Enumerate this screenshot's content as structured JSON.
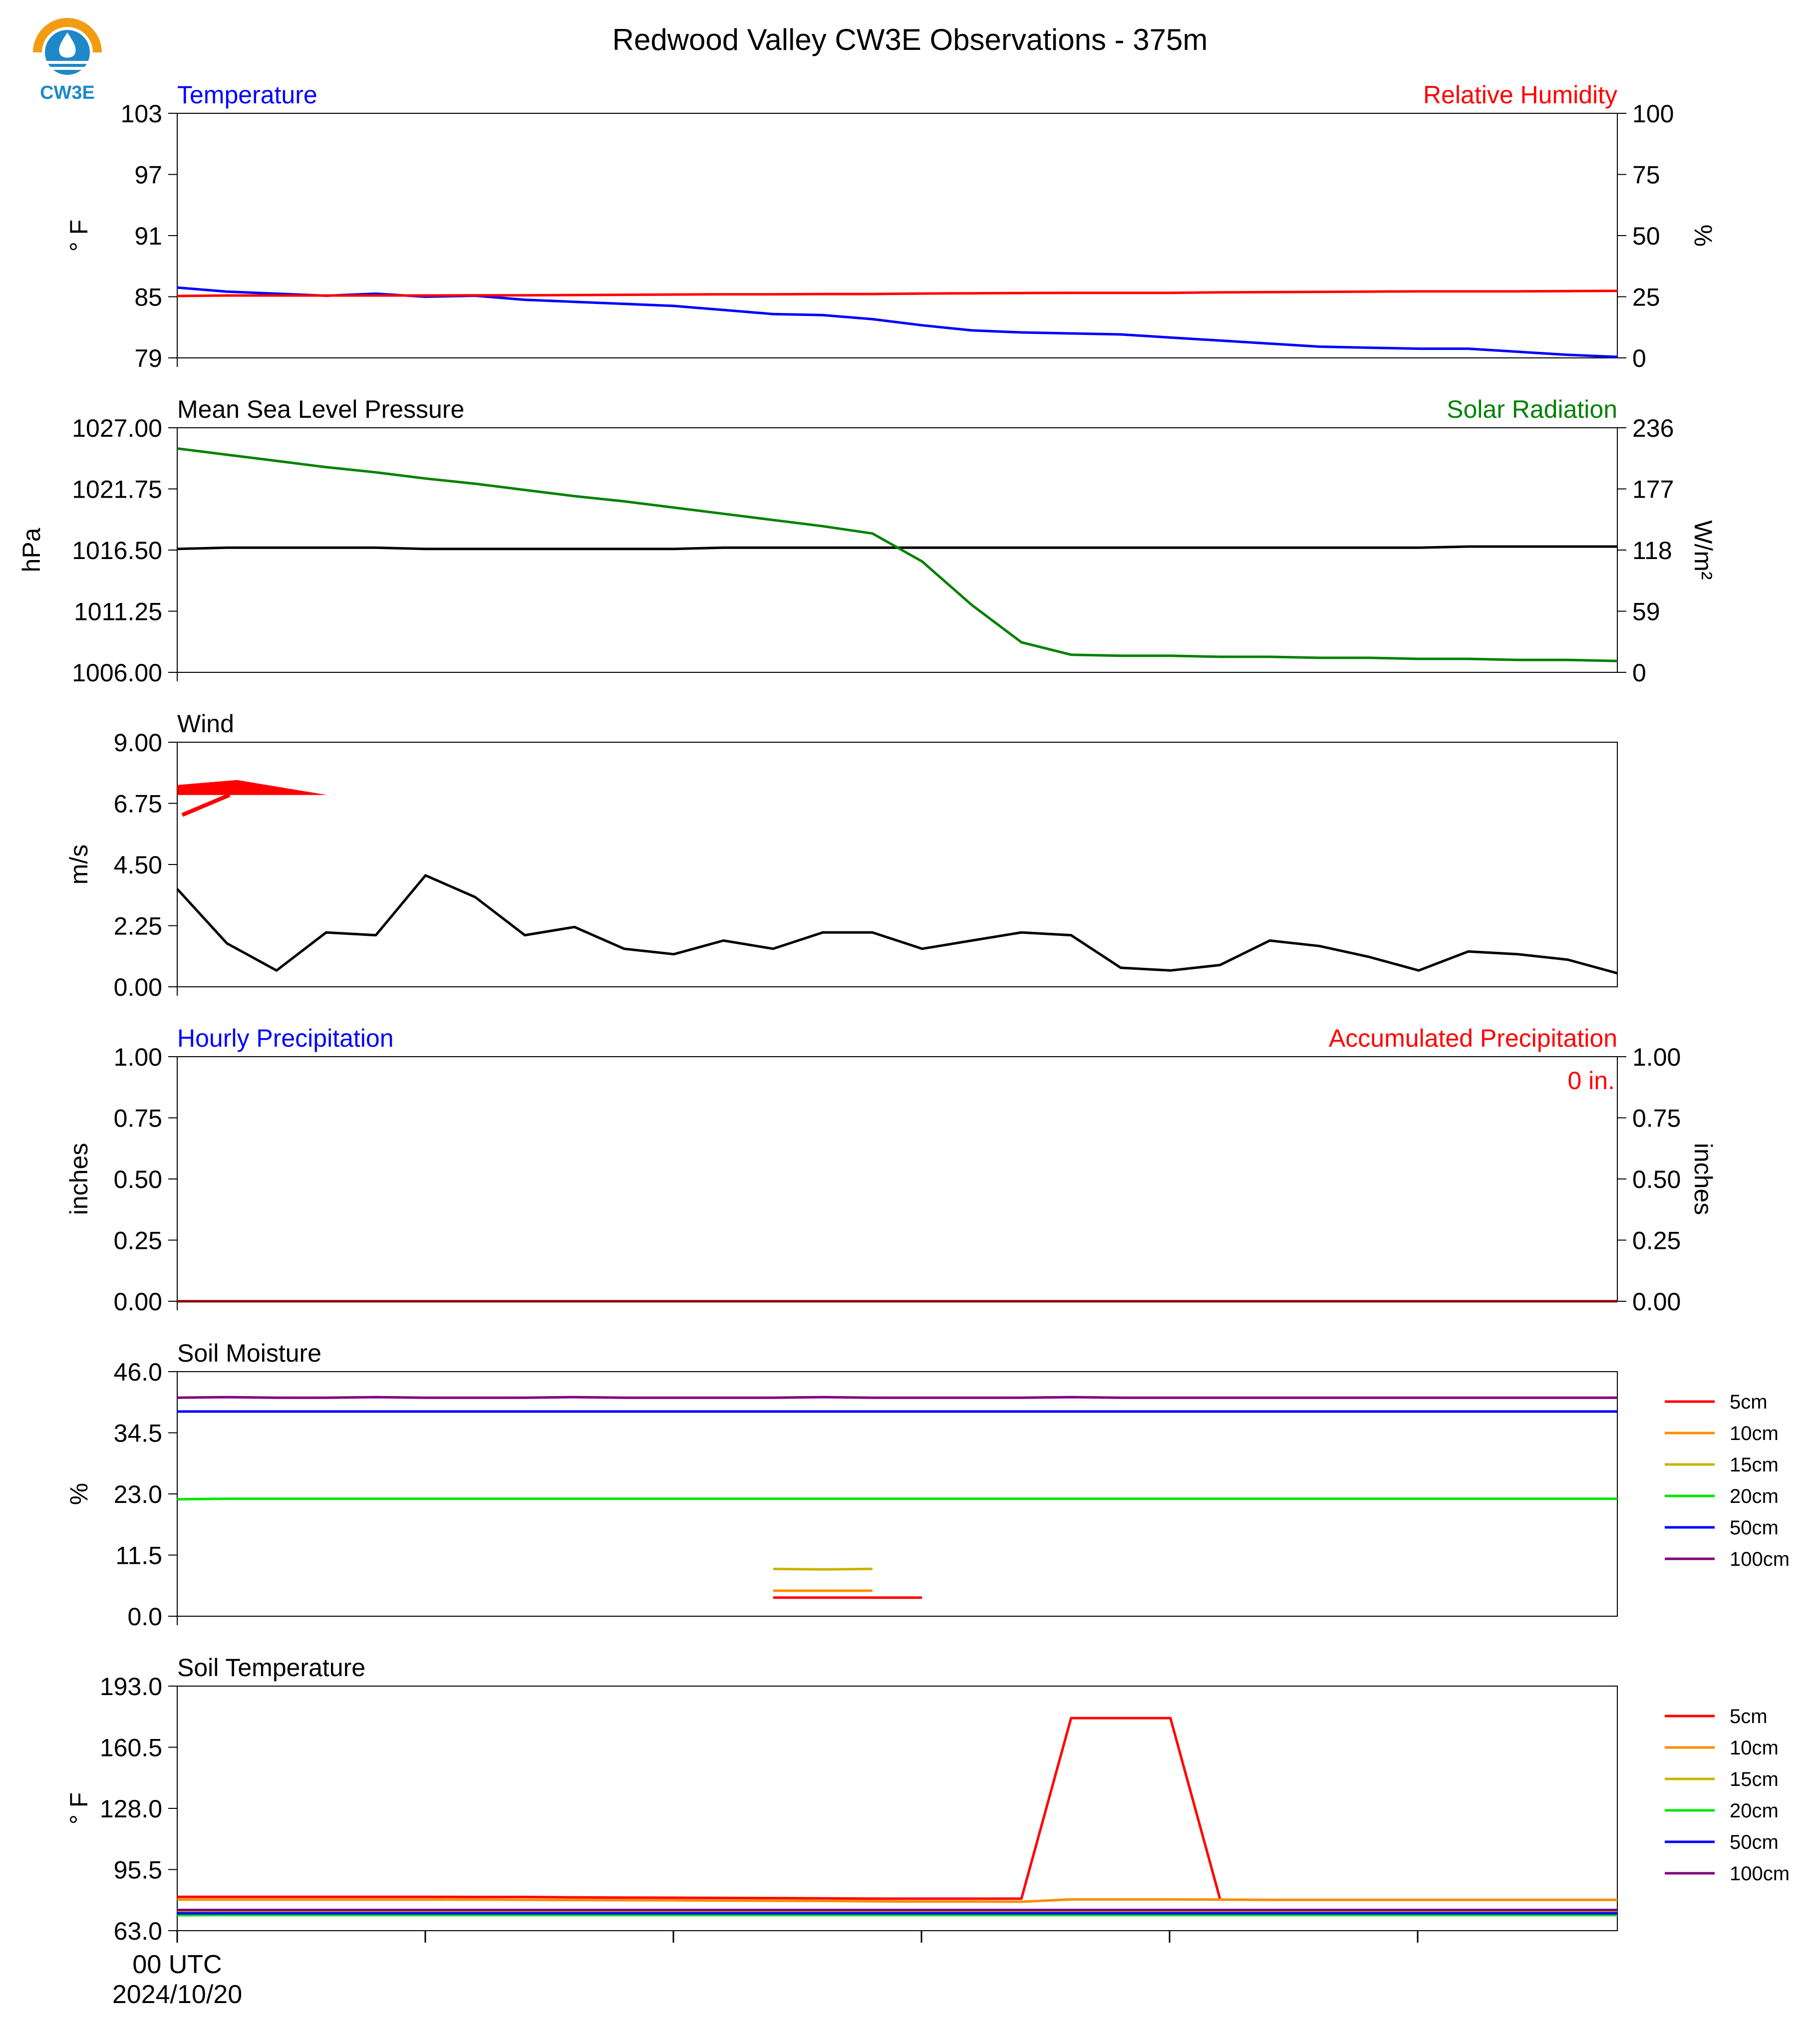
{
  "title": "Redwood Valley CW3E Observations - 375m",
  "logo": {
    "text": "CW3E",
    "icon": "cw3e-logo-icon"
  },
  "colors": {
    "blue": "#0000ff",
    "red": "#ff0000",
    "green": "#008000",
    "black": "#000000",
    "orange": "#ff8c00",
    "olive": "#c8b400",
    "lime": "#00e600",
    "purple": "#800080",
    "darkred": "#8b0000"
  },
  "x_axis": {
    "label_line1": "00 UTC",
    "label_line2": "2024/10/20",
    "num_points": 30
  },
  "chart_data": [
    {
      "type": "line",
      "left_title": "Temperature",
      "right_title": "Relative Humidity",
      "ylabel": "° F",
      "ylabel2": "%",
      "ylim": [
        79,
        103
      ],
      "y2lim": [
        0,
        100
      ],
      "yticks": [
        "103",
        "97",
        "91",
        "85",
        "79"
      ],
      "y2ticks": [
        "100",
        "75",
        "50",
        "25",
        "0"
      ],
      "series": [
        {
          "axis": "left",
          "color": "#0000ff",
          "values": [
            85.9,
            85.5,
            85.3,
            85.1,
            85.3,
            85.0,
            85.1,
            84.7,
            84.5,
            84.3,
            84.1,
            83.7,
            83.3,
            83.2,
            82.8,
            82.2,
            81.7,
            81.5,
            81.4,
            81.3,
            81.0,
            80.7,
            80.4,
            80.1,
            80.0,
            79.9,
            79.9,
            79.6,
            79.3,
            79.1
          ]
        },
        {
          "axis": "right",
          "color": "#ff0000",
          "values": [
            25.3,
            25.5,
            25.5,
            25.5,
            25.5,
            25.5,
            25.6,
            25.6,
            25.7,
            25.8,
            25.9,
            26.0,
            26.0,
            26.1,
            26.1,
            26.3,
            26.4,
            26.5,
            26.6,
            26.6,
            26.6,
            26.8,
            26.9,
            27.0,
            27.1,
            27.2,
            27.2,
            27.2,
            27.3,
            27.4
          ]
        }
      ]
    },
    {
      "type": "line",
      "left_title": "Mean Sea Level Pressure",
      "right_title": "Solar Radiation",
      "ylabel": "hPa",
      "ylabel2": "W/m²",
      "ylim": [
        1006.0,
        1027.0
      ],
      "y2lim": [
        0,
        236
      ],
      "yticks": [
        "1027.00",
        "1021.75",
        "1016.50",
        "1011.25",
        "1006.00"
      ],
      "y2ticks": [
        "236",
        "177",
        "118",
        "59",
        "0"
      ],
      "series": [
        {
          "axis": "left",
          "color": "#000000",
          "values": [
            1016.6,
            1016.7,
            1016.7,
            1016.7,
            1016.7,
            1016.6,
            1016.6,
            1016.6,
            1016.6,
            1016.6,
            1016.6,
            1016.7,
            1016.7,
            1016.7,
            1016.7,
            1016.7,
            1016.7,
            1016.7,
            1016.7,
            1016.7,
            1016.7,
            1016.7,
            1016.7,
            1016.7,
            1016.7,
            1016.7,
            1016.8,
            1016.8,
            1016.8,
            1016.8
          ]
        },
        {
          "axis": "right",
          "color": "#008000",
          "values": [
            216,
            210,
            204,
            198,
            193,
            187,
            182,
            176,
            170,
            165,
            159,
            153,
            147,
            141,
            134,
            107,
            65,
            29,
            17,
            16,
            16,
            15,
            15,
            14,
            14,
            13,
            13,
            12,
            12,
            11
          ]
        }
      ]
    },
    {
      "type": "line",
      "left_title": "Wind",
      "ylabel": "m/s",
      "ylim": [
        0,
        9
      ],
      "yticks": [
        "9.00",
        "6.75",
        "4.50",
        "2.25",
        "0.00"
      ],
      "series": [
        {
          "axis": "left",
          "color": "#000000",
          "values": [
            3.6,
            1.6,
            0.6,
            2.0,
            1.9,
            4.1,
            3.3,
            1.9,
            2.2,
            1.4,
            1.2,
            1.7,
            1.4,
            2.0,
            2.0,
            1.4,
            1.7,
            2.0,
            1.9,
            0.7,
            0.6,
            0.8,
            1.7,
            1.5,
            1.1,
            0.6,
            1.3,
            1.2,
            1.0,
            0.5
          ]
        }
      ],
      "wind_barb": {
        "color": "#ff0000"
      }
    },
    {
      "type": "line",
      "left_title": "Hourly Precipitation",
      "right_title": "Accumulated Precipitation",
      "ylabel": "inches",
      "ylabel2": "inches",
      "ylim": [
        0,
        1
      ],
      "y2lim": [
        0,
        1
      ],
      "yticks": [
        "1.00",
        "0.75",
        "0.50",
        "0.25",
        "0.00"
      ],
      "y2ticks": [
        "1.00",
        "0.75",
        "0.50",
        "0.25",
        "0.00"
      ],
      "annotation": "0 in.",
      "series": [
        {
          "axis": "left",
          "color": "#8b0000",
          "values": [
            0,
            0,
            0,
            0,
            0,
            0,
            0,
            0,
            0,
            0,
            0,
            0,
            0,
            0,
            0,
            0,
            0,
            0,
            0,
            0,
            0,
            0,
            0,
            0,
            0,
            0,
            0,
            0,
            0,
            0
          ]
        }
      ]
    },
    {
      "type": "line",
      "left_title": "Soil Moisture",
      "ylabel": "%",
      "ylim": [
        0,
        46
      ],
      "yticks": [
        "46.0",
        "34.5",
        "23.0",
        "11.5",
        "0.0"
      ],
      "legend": [
        "5cm",
        "10cm",
        "15cm",
        "20cm",
        "50cm",
        "100cm"
      ],
      "legend_colors": [
        "#ff0000",
        "#ff8c00",
        "#c8b400",
        "#00e600",
        "#0000ff",
        "#800080"
      ],
      "series": [
        {
          "name": "5cm",
          "axis": "left",
          "color": "#ff0000",
          "points": [
            [
              12,
              3.5
            ],
            [
              13,
              3.5
            ],
            [
              14,
              3.5
            ],
            [
              15,
              3.5
            ]
          ]
        },
        {
          "name": "10cm",
          "axis": "left",
          "color": "#ff8c00",
          "points": [
            [
              12,
              4.8
            ],
            [
              13,
              4.8
            ],
            [
              14,
              4.8
            ]
          ]
        },
        {
          "name": "15cm",
          "axis": "left",
          "color": "#c8b400",
          "points": [
            [
              12,
              8.9
            ],
            [
              13,
              8.8
            ],
            [
              14,
              8.9
            ]
          ]
        },
        {
          "name": "20cm",
          "axis": "left",
          "color": "#00e600",
          "values": [
            22.0,
            22.1,
            22.1,
            22.1,
            22.1,
            22.1,
            22.1,
            22.1,
            22.1,
            22.1,
            22.1,
            22.1,
            22.1,
            22.1,
            22.1,
            22.1,
            22.1,
            22.1,
            22.1,
            22.1,
            22.1,
            22.1,
            22.1,
            22.1,
            22.1,
            22.1,
            22.1,
            22.1,
            22.1,
            22.1
          ]
        },
        {
          "name": "50cm",
          "axis": "left",
          "color": "#0000ff",
          "values": [
            38.5,
            38.5,
            38.5,
            38.5,
            38.5,
            38.5,
            38.5,
            38.5,
            38.5,
            38.5,
            38.5,
            38.5,
            38.5,
            38.5,
            38.5,
            38.5,
            38.5,
            38.5,
            38.5,
            38.5,
            38.5,
            38.5,
            38.5,
            38.5,
            38.5,
            38.5,
            38.5,
            38.5,
            38.5,
            38.5
          ]
        },
        {
          "name": "100cm",
          "axis": "left",
          "color": "#800080",
          "values": [
            41.1,
            41.2,
            41.1,
            41.1,
            41.2,
            41.1,
            41.1,
            41.1,
            41.2,
            41.1,
            41.1,
            41.1,
            41.1,
            41.2,
            41.1,
            41.1,
            41.1,
            41.1,
            41.2,
            41.1,
            41.1,
            41.1,
            41.1,
            41.1,
            41.1,
            41.1,
            41.1,
            41.1,
            41.1,
            41.1
          ]
        }
      ]
    },
    {
      "type": "line",
      "left_title": "Soil Temperature",
      "ylabel": "° F",
      "ylim": [
        63,
        193
      ],
      "yticks": [
        "193.0",
        "160.5",
        "128.0",
        "95.5",
        "63.0"
      ],
      "legend": [
        "5cm",
        "10cm",
        "15cm",
        "20cm",
        "50cm",
        "100cm"
      ],
      "legend_colors": [
        "#ff0000",
        "#ff8c00",
        "#c8b400",
        "#00e600",
        "#0000ff",
        "#800080"
      ],
      "series": [
        {
          "name": "5cm",
          "axis": "left",
          "color": "#ff0000",
          "values": [
            81.0,
            81.0,
            81.0,
            81.0,
            81.0,
            81.0,
            80.9,
            80.9,
            80.7,
            80.6,
            80.5,
            80.4,
            80.3,
            80.2,
            80.0,
            80.0,
            80.0,
            80.0,
            176.0,
            176.0,
            176.0,
            79.8,
            null,
            null,
            null,
            null,
            null,
            null,
            null,
            null
          ]
        },
        {
          "name": "10cm",
          "axis": "left",
          "color": "#ff8c00",
          "values": [
            79.5,
            79.5,
            79.5,
            79.5,
            79.5,
            79.5,
            79.5,
            79.4,
            79.3,
            79.2,
            79.1,
            79.0,
            78.9,
            78.8,
            78.6,
            78.5,
            78.5,
            78.4,
            79.6,
            79.6,
            79.6,
            79.5,
            79.4,
            79.4,
            79.4,
            79.4,
            79.4,
            79.4,
            79.4,
            79.4
          ]
        },
        {
          "name": "15cm",
          "axis": "left",
          "color": "#c8b400",
          "values": [
            73.5,
            73.5,
            73.5,
            73.5,
            73.5,
            73.5,
            73.5,
            73.5,
            73.5,
            73.5,
            73.5,
            73.5,
            73.5,
            73.5,
            73.5,
            73.5,
            73.5,
            73.5,
            73.5,
            73.5,
            73.5,
            73.5,
            73.5,
            73.5,
            73.5,
            73.5,
            73.5,
            73.5,
            73.5,
            73.5
          ]
        },
        {
          "name": "20cm",
          "axis": "left",
          "color": "#00e600",
          "values": [
            71.2,
            71.3,
            71.3,
            71.3,
            71.3,
            71.3,
            71.3,
            71.3,
            71.3,
            71.3,
            71.3,
            71.3,
            71.3,
            71.3,
            71.3,
            71.3,
            71.3,
            71.3,
            71.3,
            71.3,
            71.3,
            71.3,
            71.3,
            71.3,
            71.3,
            71.3,
            71.3,
            71.3,
            71.3,
            71.3
          ]
        },
        {
          "name": "50cm",
          "axis": "left",
          "color": "#0000ff",
          "values": [
            72.2,
            72.2,
            72.2,
            72.2,
            72.2,
            72.2,
            72.2,
            72.2,
            72.2,
            72.2,
            72.2,
            72.2,
            72.2,
            72.2,
            72.2,
            72.2,
            72.2,
            72.2,
            72.2,
            72.2,
            72.2,
            72.2,
            72.2,
            72.2,
            72.2,
            72.2,
            72.2,
            72.2,
            72.2,
            72.2
          ]
        },
        {
          "name": "100cm",
          "axis": "left",
          "color": "#800080",
          "values": [
            74.0,
            74.0,
            74.0,
            74.0,
            74.0,
            74.0,
            74.0,
            74.0,
            74.0,
            74.0,
            74.0,
            74.0,
            74.0,
            74.0,
            74.0,
            74.0,
            74.0,
            74.0,
            74.0,
            74.0,
            74.0,
            74.0,
            74.0,
            74.0,
            74.0,
            74.0,
            74.0,
            74.0,
            74.0,
            74.0
          ]
        }
      ]
    }
  ]
}
